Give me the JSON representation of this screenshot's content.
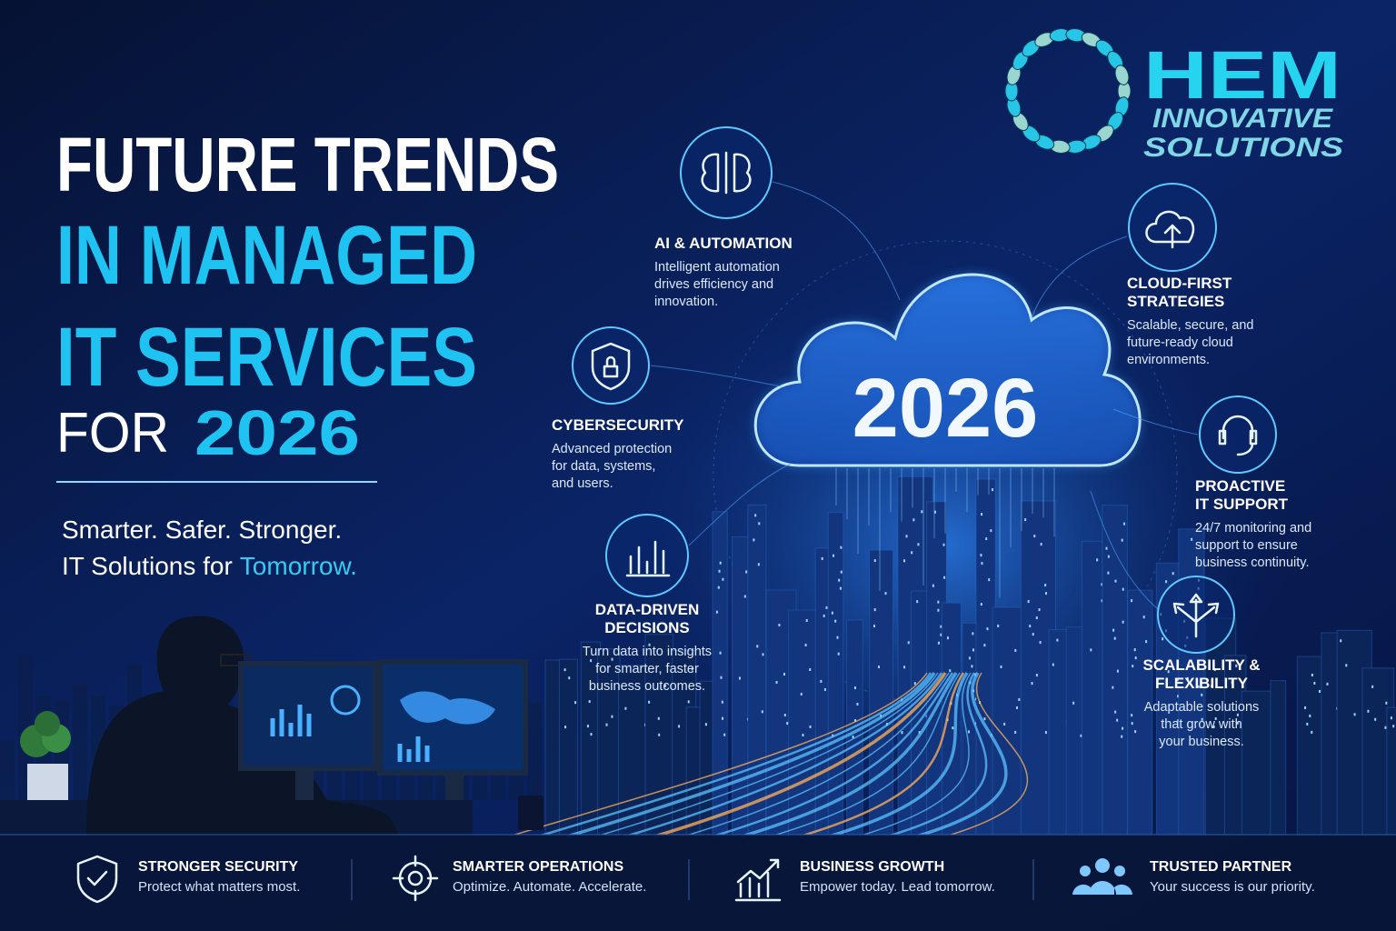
{
  "logo": {
    "name": "HEM",
    "line1": "INNOVATIVE",
    "line2": "SOLUTIONS"
  },
  "header": {
    "line1": "FUTURE TRENDS",
    "line2": "IN MANAGED",
    "line3": "IT SERVICES",
    "line4_prefix": "FOR",
    "line4_year": "2026"
  },
  "tagline": {
    "line1": "Smarter. Safer. Stronger.",
    "line2_prefix": "IT Solutions for",
    "line2_highlight": "Tomorrow."
  },
  "center": {
    "year": "2026"
  },
  "trends": [
    {
      "title": [
        "AI & AUTOMATION"
      ],
      "description": [
        "Intelligent automation",
        "drives efficiency and",
        "innovation."
      ]
    },
    {
      "title": [
        "CYBERSECURITY"
      ],
      "description": [
        "Advanced protection",
        "for data, systems,",
        "and users."
      ]
    },
    {
      "title": [
        "DATA-DRIVEN",
        "DECISIONS"
      ],
      "description": [
        "Turn data into insights",
        "for smarter, faster",
        "business outcomes."
      ]
    },
    {
      "title": [
        "CLOUD-FIRST",
        "STRATEGIES"
      ],
      "description": [
        "Scalable, secure, and",
        "future-ready cloud",
        "environments."
      ]
    },
    {
      "title": [
        "PROACTIVE",
        "IT SUPPORT"
      ],
      "description": [
        "24/7 monitoring and",
        "support to ensure",
        "business continuity."
      ]
    },
    {
      "title": [
        "SCALABILITY &",
        "FLEXIBILITY"
      ],
      "description": [
        "Adaptable solutions",
        "that grow with",
        "your business."
      ]
    }
  ],
  "footer": [
    {
      "title": "STRONGER SECURITY",
      "subtitle": "Protect what matters most."
    },
    {
      "title": "SMARTER OPERATIONS",
      "subtitle": "Optimize. Automate. Accelerate."
    },
    {
      "title": "BUSINESS GROWTH",
      "subtitle": "Empower today. Lead tomorrow."
    },
    {
      "title": "TRUSTED PARTNER",
      "subtitle": "Your success is our priority."
    }
  ]
}
